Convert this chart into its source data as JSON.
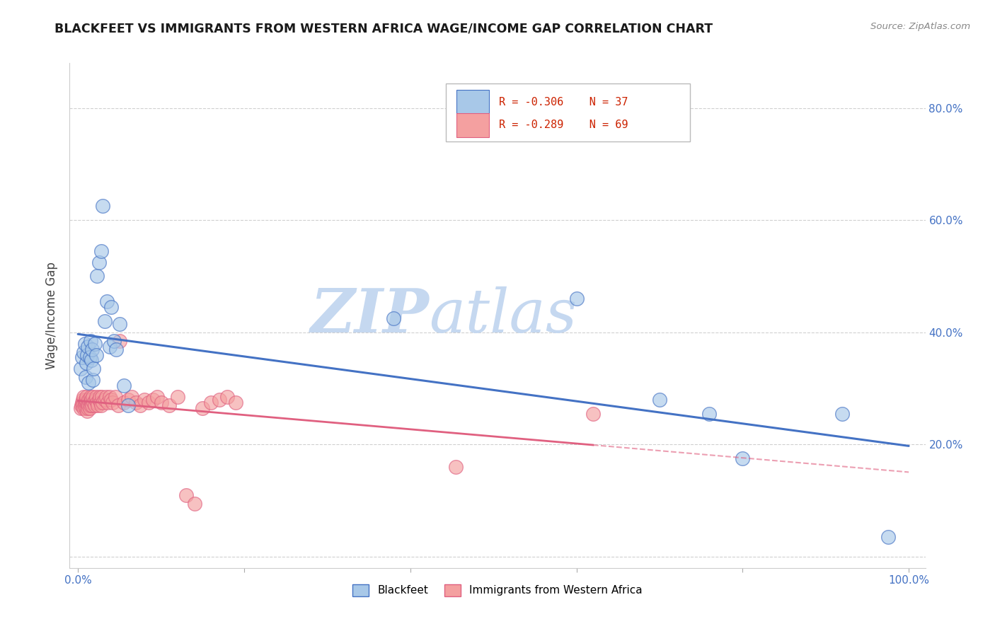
{
  "title": "BLACKFEET VS IMMIGRANTS FROM WESTERN AFRICA WAGE/INCOME GAP CORRELATION CHART",
  "source": "Source: ZipAtlas.com",
  "ylabel": "Wage/Income Gap",
  "blue_color": "#a8c8e8",
  "pink_color": "#f4a0a0",
  "blue_line_color": "#4472c4",
  "pink_line_color": "#e06080",
  "watermark_zip_color": "#c8d8ee",
  "watermark_atlas_color": "#c8d8ee",
  "legend_r1": "R = -0.306",
  "legend_n1": "N = 37",
  "legend_r2": "R = -0.289",
  "legend_n2": "N = 69",
  "blackfeet_x": [
    0.003,
    0.005,
    0.007,
    0.008,
    0.009,
    0.01,
    0.011,
    0.012,
    0.013,
    0.014,
    0.015,
    0.016,
    0.017,
    0.018,
    0.019,
    0.02,
    0.022,
    0.023,
    0.025,
    0.028,
    0.03,
    0.032,
    0.035,
    0.038,
    0.04,
    0.043,
    0.046,
    0.05,
    0.055,
    0.06,
    0.38,
    0.6,
    0.7,
    0.76,
    0.8,
    0.92,
    0.975
  ],
  "blackfeet_y": [
    0.335,
    0.355,
    0.365,
    0.38,
    0.32,
    0.345,
    0.36,
    0.375,
    0.31,
    0.355,
    0.385,
    0.35,
    0.37,
    0.315,
    0.335,
    0.38,
    0.36,
    0.5,
    0.525,
    0.545,
    0.625,
    0.42,
    0.455,
    0.375,
    0.445,
    0.385,
    0.37,
    0.415,
    0.305,
    0.27,
    0.425,
    0.46,
    0.28,
    0.255,
    0.175,
    0.255,
    0.035
  ],
  "africa_x": [
    0.003,
    0.004,
    0.005,
    0.006,
    0.006,
    0.007,
    0.007,
    0.008,
    0.008,
    0.009,
    0.009,
    0.01,
    0.01,
    0.011,
    0.011,
    0.012,
    0.012,
    0.013,
    0.013,
    0.014,
    0.014,
    0.015,
    0.015,
    0.016,
    0.016,
    0.017,
    0.018,
    0.019,
    0.02,
    0.021,
    0.022,
    0.023,
    0.024,
    0.025,
    0.026,
    0.027,
    0.028,
    0.029,
    0.03,
    0.032,
    0.034,
    0.036,
    0.038,
    0.04,
    0.042,
    0.045,
    0.048,
    0.05,
    0.055,
    0.06,
    0.065,
    0.07,
    0.075,
    0.08,
    0.085,
    0.09,
    0.095,
    0.1,
    0.11,
    0.12,
    0.13,
    0.14,
    0.15,
    0.16,
    0.17,
    0.18,
    0.19,
    0.455,
    0.62
  ],
  "africa_y": [
    0.265,
    0.27,
    0.275,
    0.28,
    0.27,
    0.265,
    0.285,
    0.275,
    0.27,
    0.28,
    0.265,
    0.275,
    0.285,
    0.27,
    0.26,
    0.275,
    0.265,
    0.28,
    0.27,
    0.275,
    0.265,
    0.27,
    0.285,
    0.275,
    0.28,
    0.27,
    0.285,
    0.275,
    0.27,
    0.28,
    0.285,
    0.275,
    0.27,
    0.28,
    0.285,
    0.275,
    0.27,
    0.285,
    0.275,
    0.28,
    0.285,
    0.275,
    0.285,
    0.28,
    0.275,
    0.285,
    0.27,
    0.385,
    0.275,
    0.28,
    0.285,
    0.275,
    0.27,
    0.28,
    0.275,
    0.28,
    0.285,
    0.275,
    0.27,
    0.285,
    0.11,
    0.095,
    0.265,
    0.275,
    0.28,
    0.285,
    0.275,
    0.16,
    0.255
  ],
  "xlim": [
    -0.01,
    1.02
  ],
  "ylim": [
    -0.02,
    0.88
  ],
  "yticks": [
    0.0,
    0.2,
    0.4,
    0.6,
    0.8
  ],
  "yticklabels_right": [
    "",
    "20.0%",
    "40.0%",
    "60.0%",
    "80.0%"
  ],
  "xticks": [
    0.0,
    0.2,
    0.4,
    0.6,
    0.8,
    1.0
  ],
  "xticklabels": [
    "0.0%",
    "",
    "",
    "",
    "",
    "100.0%"
  ]
}
